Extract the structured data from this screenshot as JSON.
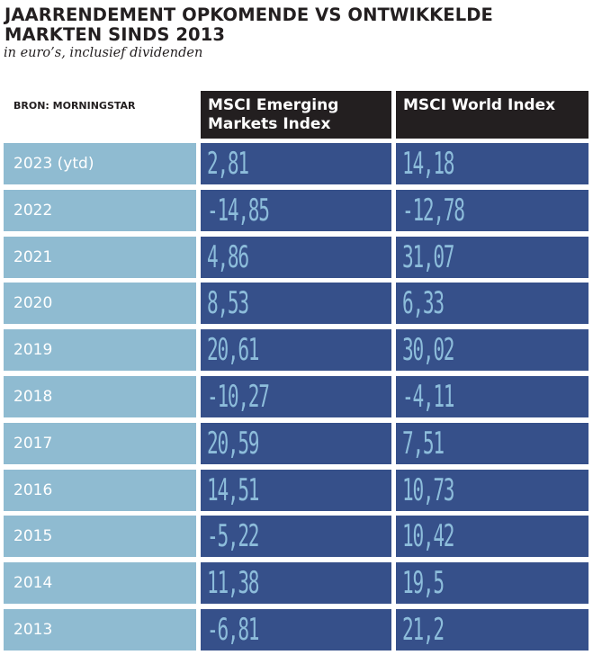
{
  "title": "JAARRENDEMENT OPKOMENDE VS ONTWIKKELDE MARKTEN SINDS 2013",
  "subtitle": "in euro’s, inclusief dividenden",
  "source": "BRON: MORNINGSTAR",
  "colors": {
    "year_cell": "#8fbbd1",
    "value_cell": "#36508a",
    "value_text": "#8dbddb",
    "header": "#231f20"
  },
  "chart_data": {
    "type": "table",
    "title": "JAARRENDEMENT OPKOMENDE VS ONTWIKKELDE MARKTEN SINDS 2013",
    "subtitle": "in euro’s, inclusief dividenden",
    "source": "BRON: MORNINGSTAR",
    "columns": [
      "MSCI Emerging Markets Index",
      "MSCI World Index"
    ],
    "rows": [
      {
        "year": "2023 (ytd)",
        "values": [
          "2,81",
          "14,18"
        ]
      },
      {
        "year": "2022",
        "values": [
          "-14,85",
          "-12,78"
        ]
      },
      {
        "year": "2021",
        "values": [
          "4,86",
          "31,07"
        ]
      },
      {
        "year": "2020",
        "values": [
          "8,53",
          "6,33"
        ]
      },
      {
        "year": "2019",
        "values": [
          "20,61",
          "30,02"
        ]
      },
      {
        "year": "2018",
        "values": [
          "-10,27",
          "-4,11"
        ]
      },
      {
        "year": "2017",
        "values": [
          "20,59",
          "7,51"
        ]
      },
      {
        "year": "2016",
        "values": [
          "14,51",
          "10,73"
        ]
      },
      {
        "year": "2015",
        "values": [
          "-5,22",
          "10,42"
        ]
      },
      {
        "year": "2014",
        "values": [
          "11,38",
          "19,5"
        ]
      },
      {
        "year": "2013",
        "values": [
          "-6,81",
          "21,2"
        ]
      }
    ],
    "series": [
      {
        "name": "MSCI Emerging Markets Index",
        "values": [
          2.81,
          -14.85,
          4.86,
          8.53,
          20.61,
          -10.27,
          20.59,
          14.51,
          -5.22,
          11.38,
          -6.81
        ]
      },
      {
        "name": "MSCI World Index",
        "values": [
          14.18,
          -12.78,
          31.07,
          6.33,
          30.02,
          -4.11,
          7.51,
          10.73,
          10.42,
          19.5,
          21.2
        ]
      }
    ],
    "categories": [
      "2023 (ytd)",
      "2022",
      "2021",
      "2020",
      "2019",
      "2018",
      "2017",
      "2016",
      "2015",
      "2014",
      "2013"
    ]
  }
}
